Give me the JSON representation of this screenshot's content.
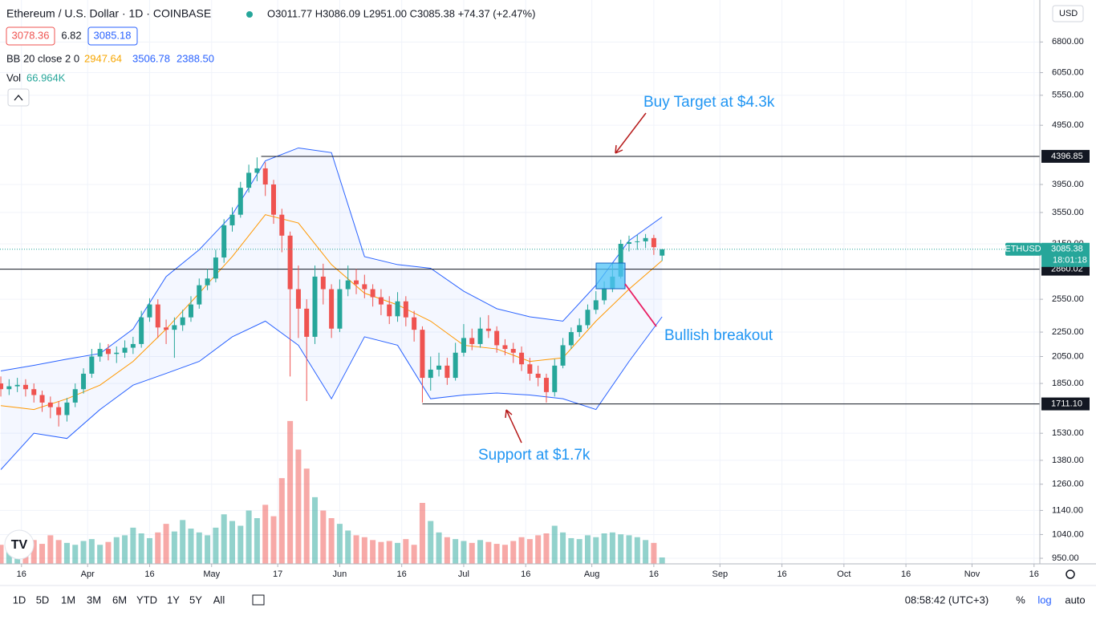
{
  "header": {
    "title": "Ethereum / U.S. Dollar · 1D · COINBASE",
    "ohlc": "O3011.77 H3086.09 L2951.00 C3085.38 +74.37 (+2.47%)",
    "bid": "3078.36",
    "spread": "6.82",
    "ask": "3085.18",
    "bb_label": "BB 20 close 2 0",
    "bb_mid": "2947.64",
    "bb_up": "3506.78",
    "bb_low": "2388.50",
    "vol_label": "Vol",
    "vol_value": "66.964K",
    "currency": "USD"
  },
  "toolbar": {
    "ranges": [
      "1D",
      "5D",
      "1M",
      "3M",
      "6M",
      "YTD",
      "1Y",
      "5Y",
      "All"
    ],
    "clock": "08:58:42 (UTC+3)",
    "percent": "%",
    "log": "log",
    "auto": "auto"
  },
  "chart_data": {
    "type": "candlestick",
    "symbol": "ETHUSD",
    "countdown": "18:01:18",
    "log_scale": true,
    "ylim": [
      930,
      7980
    ],
    "xlim": [
      -0.1,
      125.7
    ],
    "yticks": [
      {
        "value": 6800,
        "label": "6800.00"
      },
      {
        "value": 6050,
        "label": "6050.00"
      },
      {
        "value": 5550,
        "label": "5550.00"
      },
      {
        "value": 4950,
        "label": "4950.00"
      },
      {
        "value": 3950,
        "label": "3950.00"
      },
      {
        "value": 3550,
        "label": "3550.00"
      },
      {
        "value": 3150,
        "label": "3150.00"
      },
      {
        "value": 2550,
        "label": "2550.00"
      },
      {
        "value": 2250,
        "label": "2250.00"
      },
      {
        "value": 2050,
        "label": "2050.00"
      },
      {
        "value": 1850,
        "label": "1850.00"
      },
      {
        "value": 1530,
        "label": "1530.00"
      },
      {
        "value": 1380,
        "label": "1380.00"
      },
      {
        "value": 1260,
        "label": "1260.00"
      },
      {
        "value": 1140,
        "label": "1140.00"
      },
      {
        "value": 1040,
        "label": "1040.00"
      },
      {
        "value": 950,
        "label": "950.00"
      }
    ],
    "xticks": [
      {
        "value": 2.5,
        "label": "16"
      },
      {
        "value": 10.5,
        "label": "Apr"
      },
      {
        "value": 18,
        "label": "16"
      },
      {
        "value": 25.5,
        "label": "May"
      },
      {
        "value": 33.5,
        "label": "17"
      },
      {
        "value": 41,
        "label": "Jun"
      },
      {
        "value": 48.5,
        "label": "16"
      },
      {
        "value": 56,
        "label": "Jul"
      },
      {
        "value": 63.5,
        "label": "16"
      },
      {
        "value": 71.5,
        "label": "Aug"
      },
      {
        "value": 79,
        "label": "16"
      },
      {
        "value": 87,
        "label": "Sep"
      },
      {
        "value": 94.5,
        "label": "16"
      },
      {
        "value": 102,
        "label": "Oct"
      },
      {
        "value": 109.5,
        "label": "16"
      },
      {
        "value": 117.5,
        "label": "Nov"
      },
      {
        "value": 125,
        "label": "16"
      }
    ],
    "up_color": "#26a69a",
    "down_color": "#ef5350",
    "candles": {
      "open": [
        1850,
        1810,
        1830,
        1840,
        1810,
        1770,
        1720,
        1690,
        1640,
        1720,
        1810,
        1920,
        2050,
        2110,
        2070,
        2080,
        2120,
        2150,
        2380,
        2500,
        2290,
        2270,
        2310,
        2380,
        2500,
        2690,
        2760,
        2990,
        3380,
        3520,
        3900,
        4130,
        4200,
        3950,
        3520,
        3250,
        2650,
        2460,
        2210,
        2780,
        2650,
        2280,
        2650,
        2740,
        2700,
        2650,
        2570,
        2500,
        2390,
        2530,
        2380,
        2270,
        1890,
        1950,
        1980,
        1890,
        2080,
        2200,
        2150,
        2280,
        2260,
        2140,
        2110,
        2080,
        1990,
        1920,
        1890,
        1790,
        1980,
        2140,
        2250,
        2310,
        2450,
        2540,
        2650,
        2780,
        3150,
        3170,
        3180,
        3220,
        3011.77
      ],
      "high": [
        1900,
        1880,
        1890,
        1880,
        1850,
        1800,
        1760,
        1730,
        1750,
        1850,
        1960,
        2110,
        2160,
        2150,
        2130,
        2180,
        2210,
        2440,
        2560,
        2550,
        2360,
        2380,
        2450,
        2580,
        2760,
        2860,
        3080,
        3460,
        3620,
        3990,
        4260,
        4380,
        4300,
        4020,
        3600,
        3300,
        2900,
        2550,
        2900,
        2920,
        2700,
        2750,
        2900,
        2860,
        2800,
        2700,
        2650,
        2580,
        2620,
        2580,
        2440,
        2300,
        2050,
        2080,
        2040,
        2160,
        2320,
        2280,
        2380,
        2400,
        2300,
        2190,
        2160,
        2130,
        2040,
        1980,
        1920,
        2030,
        2200,
        2290,
        2370,
        2500,
        2630,
        2730,
        2920,
        3200,
        3250,
        3260,
        3270,
        3260,
        3086.09
      ],
      "low": [
        1760,
        1770,
        1790,
        1760,
        1720,
        1660,
        1620,
        1570,
        1600,
        1690,
        1780,
        1890,
        2010,
        2020,
        2000,
        2040,
        2070,
        2120,
        2340,
        2200,
        2150,
        2040,
        2260,
        2340,
        2460,
        2640,
        2720,
        2930,
        3300,
        3480,
        3830,
        4000,
        3780,
        3400,
        3050,
        1900,
        2200,
        1730,
        2150,
        2500,
        2200,
        2250,
        2580,
        2600,
        2560,
        2480,
        2400,
        2320,
        2340,
        2300,
        2170,
        1720,
        1800,
        1900,
        1840,
        1870,
        2050,
        2100,
        2120,
        2200,
        2080,
        2060,
        2000,
        1940,
        1870,
        1830,
        1720,
        1760,
        1960,
        2110,
        2210,
        2280,
        2410,
        2500,
        2620,
        2760,
        3060,
        3080,
        3100,
        3020,
        2951.0
      ],
      "close": [
        1810,
        1830,
        1840,
        1810,
        1770,
        1720,
        1690,
        1640,
        1720,
        1810,
        1920,
        2050,
        2110,
        2070,
        2080,
        2120,
        2150,
        2380,
        2500,
        2290,
        2270,
        2310,
        2380,
        2500,
        2690,
        2760,
        2990,
        3380,
        3520,
        3900,
        4130,
        4200,
        3950,
        3520,
        3250,
        2650,
        2460,
        2210,
        2780,
        2650,
        2280,
        2650,
        2740,
        2700,
        2650,
        2570,
        2500,
        2390,
        2530,
        2380,
        2270,
        1890,
        1950,
        1980,
        1890,
        2080,
        2200,
        2150,
        2280,
        2260,
        2140,
        2110,
        2080,
        1990,
        1920,
        1890,
        1790,
        1980,
        2140,
        2250,
        2310,
        2450,
        2540,
        2650,
        2780,
        3150,
        3170,
        3180,
        3220,
        3110,
        3085.38
      ],
      "volume": [
        200,
        220,
        170,
        230,
        250,
        210,
        300,
        250,
        220,
        200,
        240,
        260,
        200,
        230,
        280,
        300,
        380,
        320,
        270,
        330,
        420,
        340,
        460,
        370,
        330,
        300,
        380,
        520,
        450,
        400,
        560,
        480,
        620,
        500,
        900,
        1500,
        1200,
        1000,
        700,
        560,
        480,
        420,
        350,
        300,
        280,
        250,
        230,
        240,
        220,
        260,
        200,
        640,
        450,
        330,
        280,
        260,
        240,
        220,
        250,
        230,
        210,
        200,
        240,
        280,
        260,
        300,
        320,
        400,
        330,
        270,
        260,
        300,
        280,
        320,
        330,
        310,
        300,
        280,
        250,
        220,
        67
      ]
    },
    "vol_ylim": [
      0,
      1600
    ],
    "bb": {
      "x": [
        0,
        4,
        8,
        12,
        16,
        20,
        24,
        28,
        32,
        36,
        40,
        44,
        48,
        52,
        56,
        60,
        64,
        68,
        72,
        76,
        80
      ],
      "upper": [
        1940,
        1982,
        2030,
        2074,
        2276,
        2780,
        3080,
        3520,
        4323,
        4540,
        4460,
        3000,
        2910,
        2870,
        2630,
        2460,
        2385,
        2346,
        2690,
        3189,
        3490
      ],
      "middle": [
        1700,
        1675,
        1745,
        1838,
        2012,
        2276,
        2610,
        3000,
        3520,
        3410,
        2910,
        2610,
        2496,
        2346,
        2140,
        2110,
        2012,
        2040,
        2346,
        2650,
        2955
      ],
      "lower": [
        1332,
        1530,
        1500,
        1675,
        1838,
        1922,
        2012,
        2210,
        2346,
        2140,
        1745,
        2210,
        2140,
        1745,
        1770,
        1784,
        1770,
        1745,
        1675,
        2012,
        2385
      ],
      "band_color": "#2962ff",
      "middle_color": "#ff9800"
    },
    "hlines": [
      4396.85,
      2860.02,
      {
        "value": 1711.1,
        "label": "1711.10"
      }
    ],
    "annotations": [
      "Buy Target at $4.3k",
      "Bullish breakout",
      "Support at $1.7k"
    ]
  }
}
